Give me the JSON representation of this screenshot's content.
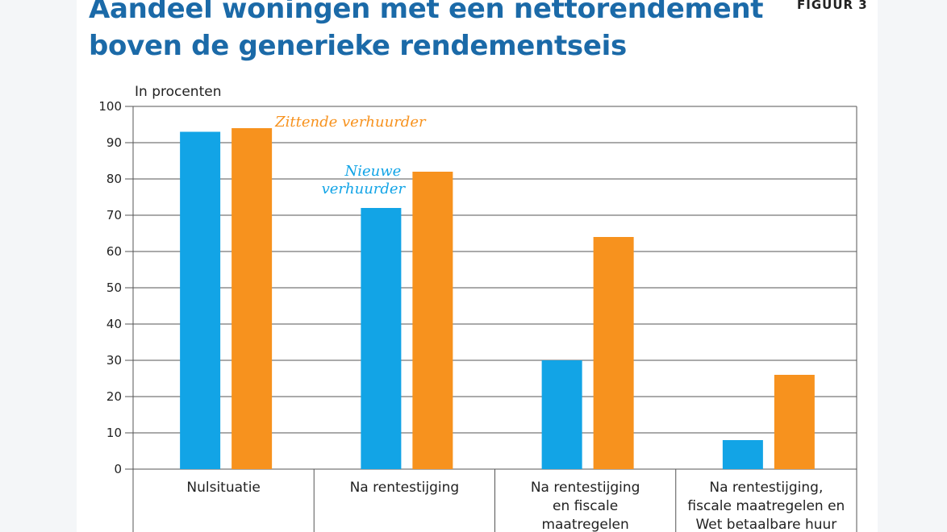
{
  "figure_label": "FIGUUR 3",
  "title_lines": [
    "Aandeel woningen met een nettorendement",
    "boven de generieke rendementseis"
  ],
  "colors": {
    "series_1": "#12a4e6",
    "series_2": "#f7921e",
    "title": "#1b6aa8",
    "grid": "#555555"
  },
  "chart_data": {
    "type": "bar",
    "ylabel": "In procenten",
    "ylim": [
      0,
      100
    ],
    "yticks": [
      0,
      10,
      20,
      30,
      40,
      50,
      60,
      70,
      80,
      90,
      100
    ],
    "grid": true,
    "categories": [
      [
        "Nulsituatie"
      ],
      [
        "Na rentestijging"
      ],
      [
        "Na rentestijging",
        "en fiscale",
        "maatregelen"
      ],
      [
        "Na rentestijging,",
        "fiscale maatregelen en",
        "Wet betaalbare huur"
      ]
    ],
    "series": [
      {
        "name": [
          "Nieuwe",
          "verhuurder"
        ],
        "values": [
          93,
          72,
          30,
          8
        ]
      },
      {
        "name": [
          "Zittende verhuurder"
        ],
        "values": [
          94,
          82,
          64,
          26
        ]
      }
    ]
  }
}
